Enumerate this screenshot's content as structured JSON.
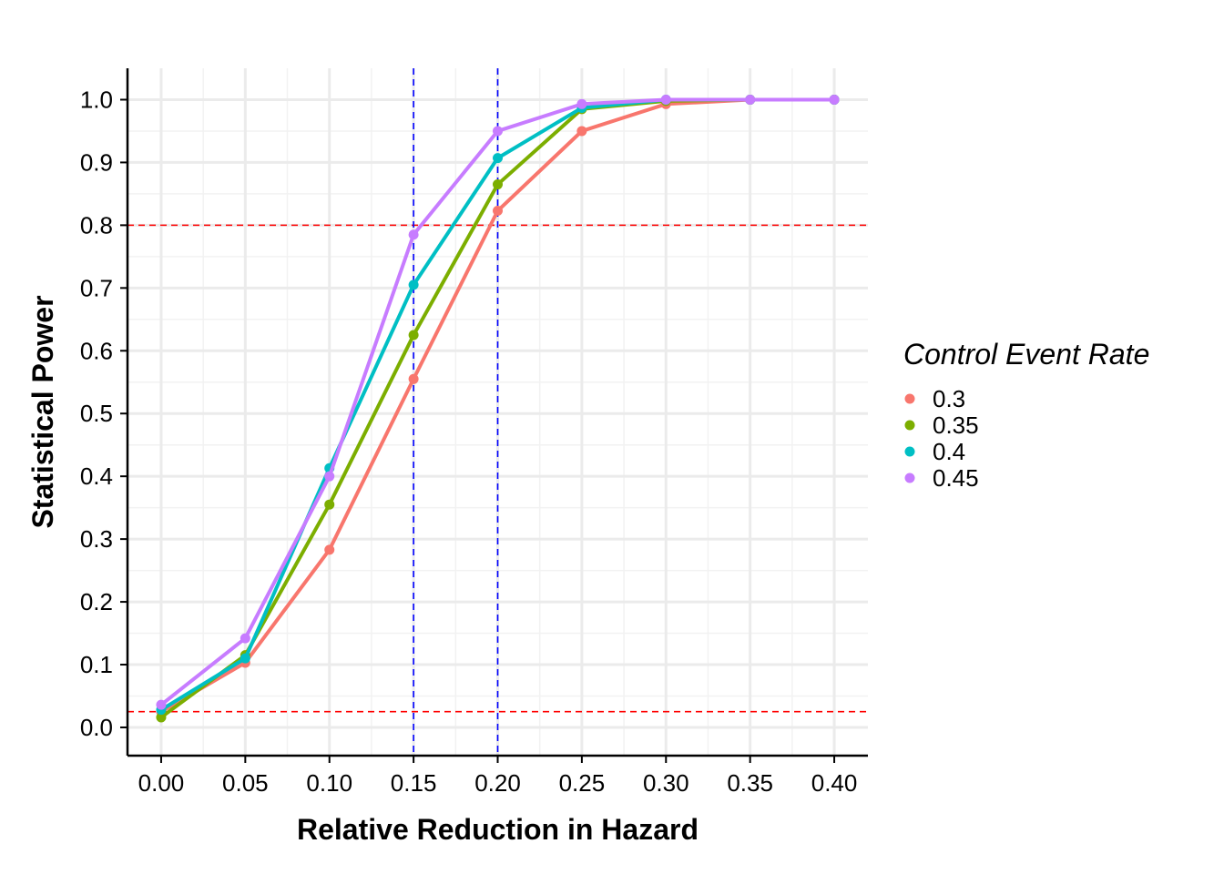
{
  "chart_data": {
    "type": "line",
    "title": "",
    "xlabel": "Relative Reduction in Hazard",
    "ylabel": "Statistical Power",
    "x": [
      0.0,
      0.05,
      0.1,
      0.15,
      0.2,
      0.25,
      0.3,
      0.35,
      0.4
    ],
    "x_tick_labels": [
      "0.00",
      "0.05",
      "0.10",
      "0.15",
      "0.20",
      "0.25",
      "0.30",
      "0.35",
      "0.40"
    ],
    "y_ticks": [
      0.0,
      0.1,
      0.2,
      0.3,
      0.4,
      0.5,
      0.6,
      0.7,
      0.8,
      0.9,
      1.0
    ],
    "y_tick_labels": [
      "0.0",
      "0.1",
      "0.2",
      "0.3",
      "0.4",
      "0.5",
      "0.6",
      "0.7",
      "0.8",
      "0.9",
      "1.0"
    ],
    "xlim": [
      -0.02,
      0.42
    ],
    "ylim": [
      -0.045,
      1.05
    ],
    "grid": true,
    "legend": {
      "title": "Control Event Rate",
      "placement": "right"
    },
    "series": [
      {
        "name": "0.3",
        "color": "#F8766D",
        "values": [
          0.025,
          0.103,
          0.283,
          0.555,
          0.823,
          0.95,
          0.993,
          1.0,
          1.0
        ]
      },
      {
        "name": "0.35",
        "color": "#7CAE00",
        "values": [
          0.016,
          0.115,
          0.355,
          0.625,
          0.865,
          0.985,
          0.998,
          1.0,
          1.0
        ]
      },
      {
        "name": "0.4",
        "color": "#00BFC4",
        "values": [
          0.028,
          0.11,
          0.413,
          0.705,
          0.907,
          0.987,
          1.0,
          1.0,
          1.0
        ]
      },
      {
        "name": "0.45",
        "color": "#C77CFF",
        "values": [
          0.036,
          0.142,
          0.4,
          0.785,
          0.95,
          0.993,
          1.0,
          1.0,
          1.0
        ]
      }
    ],
    "reference_lines": [
      {
        "orientation": "horizontal",
        "value": 0.8,
        "color": "#FF0000",
        "style": "dashed"
      },
      {
        "orientation": "horizontal",
        "value": 0.025,
        "color": "#FF0000",
        "style": "dashed"
      },
      {
        "orientation": "vertical",
        "value": 0.15,
        "color": "#0000FF",
        "style": "dashed"
      },
      {
        "orientation": "vertical",
        "value": 0.2,
        "color": "#0000FF",
        "style": "dashed"
      }
    ]
  }
}
